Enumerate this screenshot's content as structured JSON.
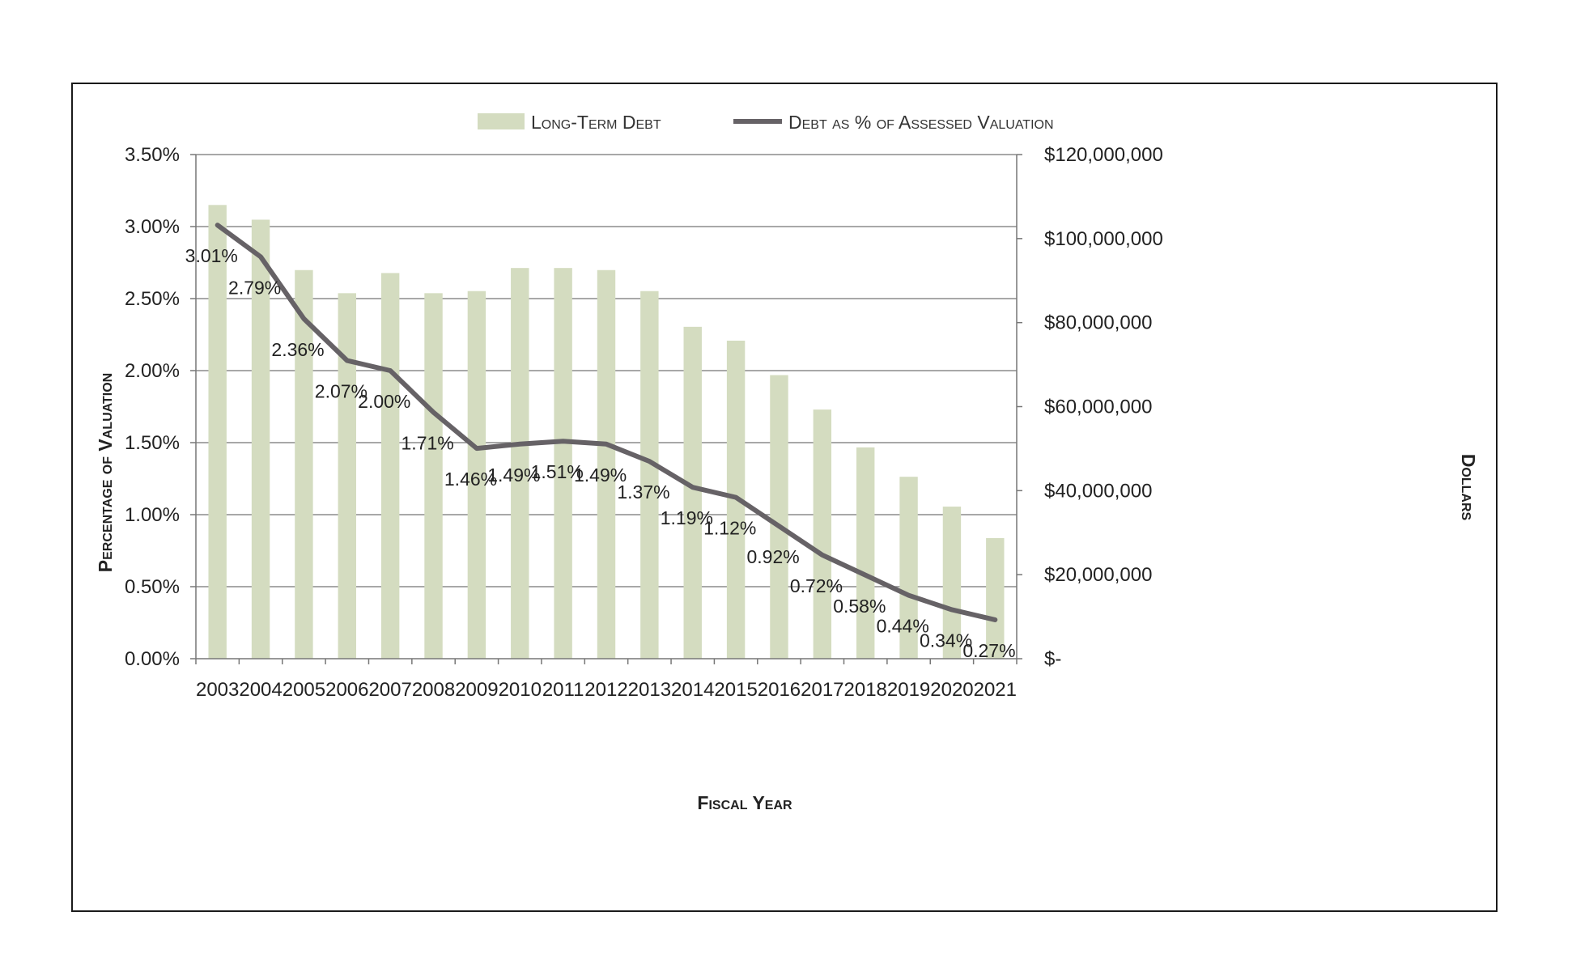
{
  "chart_data": {
    "type": "bar+line",
    "categories": [
      "2003",
      "2004",
      "2005",
      "2006",
      "2007",
      "2008",
      "2009",
      "2010",
      "2011",
      "2012",
      "2013",
      "2014",
      "2015",
      "2016",
      "2017",
      "2018",
      "2019",
      "2020",
      "2021"
    ],
    "series": [
      {
        "name": "Long-Term Debt",
        "type": "bar",
        "axis": "right",
        "color": "#d4dcc0",
        "values": [
          108000000,
          104500000,
          92500000,
          87000000,
          91800000,
          87000000,
          87500000,
          93000000,
          93000000,
          92500000,
          87500000,
          79000000,
          75700000,
          67500000,
          59300000,
          50300000,
          43300000,
          36200000,
          28700000
        ]
      },
      {
        "name": "Debt as % of Assessed Valuation",
        "type": "line",
        "axis": "left",
        "color": "#666266",
        "values": [
          3.01,
          2.79,
          2.36,
          2.07,
          2.0,
          1.71,
          1.46,
          1.49,
          1.51,
          1.49,
          1.37,
          1.19,
          1.12,
          0.92,
          0.72,
          0.58,
          0.44,
          0.34,
          0.27
        ],
        "labels": [
          "3.01%",
          "2.79%",
          "2.36%",
          "2.07%",
          "2.00%",
          "1.71%",
          "1.46%",
          "1.49%",
          "1.51%",
          "1.49%",
          "1.37%",
          "1.19%",
          "1.12%",
          "0.92%",
          "0.72%",
          "0.58%",
          "0.44%",
          "0.34%",
          "0.27%"
        ]
      }
    ],
    "legend": [
      "Long-Term Debt",
      "Debt as % of Assessed Valuation"
    ],
    "xlabel": "Fiscal Year",
    "ylabel_left": "Percentage of Valuation",
    "ylabel_right": "Dollars",
    "ylim_left": [
      0,
      3.5
    ],
    "ylim_right": [
      0,
      120000000
    ],
    "left_ticks": [
      0,
      0.5,
      1.0,
      1.5,
      2.0,
      2.5,
      3.0,
      3.5
    ],
    "left_tick_labels": [
      "0.00%",
      "0.50%",
      "1.00%",
      "1.50%",
      "2.00%",
      "2.50%",
      "3.00%",
      "3.50%"
    ],
    "right_ticks": [
      0,
      20000000,
      40000000,
      60000000,
      80000000,
      100000000,
      120000000
    ],
    "right_tick_labels": [
      "$-",
      "$20,000,000",
      "$40,000,000",
      "$60,000,000",
      "$80,000,000",
      "$100,000,000",
      "$120,000,000"
    ],
    "grid": true
  }
}
